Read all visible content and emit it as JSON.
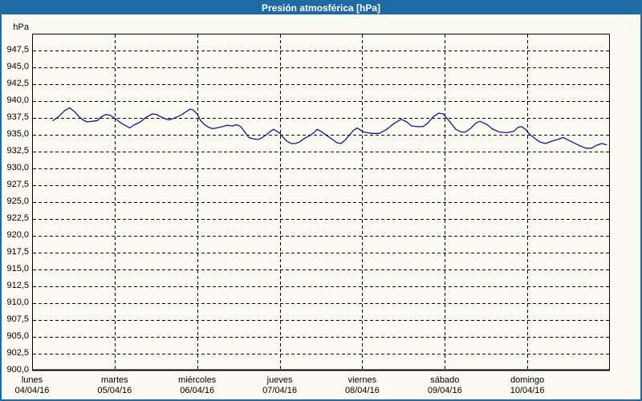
{
  "window": {
    "title": "Presión atmosférica [hPa]"
  },
  "colors": {
    "titlebar_bg": "#1e6ba4",
    "window_border": "#1e6ba4",
    "page_bg": "#fbfbf2",
    "line": "#1212b0",
    "grid": "#000000",
    "axis": "#000000",
    "title_text": "#ffffff",
    "label_text": "#000000"
  },
  "chart_data": {
    "type": "line",
    "title": "Presión atmosférica [hPa]",
    "unit_label": "hPa",
    "ylim": [
      900,
      950
    ],
    "ytick_step": 2.5,
    "xlim_hours": [
      0,
      168
    ],
    "grid": "dashed",
    "legend": "none",
    "yticks": [
      {
        "value": 947.5,
        "label": "947,5"
      },
      {
        "value": 945.0,
        "label": "945,0"
      },
      {
        "value": 942.5,
        "label": "942,5"
      },
      {
        "value": 940.0,
        "label": "940,0"
      },
      {
        "value": 937.5,
        "label": "937,5"
      },
      {
        "value": 935.0,
        "label": "935,0"
      },
      {
        "value": 932.5,
        "label": "932,5"
      },
      {
        "value": 930.0,
        "label": "930,0"
      },
      {
        "value": 927.5,
        "label": "927,5"
      },
      {
        "value": 925.0,
        "label": "925,0"
      },
      {
        "value": 922.5,
        "label": "922,5"
      },
      {
        "value": 920.0,
        "label": "920,0"
      },
      {
        "value": 917.5,
        "label": "917,5"
      },
      {
        "value": 915.0,
        "label": "915,0"
      },
      {
        "value": 912.5,
        "label": "912,5"
      },
      {
        "value": 910.0,
        "label": "910,0"
      },
      {
        "value": 907.5,
        "label": "907,5"
      },
      {
        "value": 905.0,
        "label": "905,0"
      },
      {
        "value": 902.5,
        "label": "902,5"
      },
      {
        "value": 900.0,
        "label": "900,0"
      }
    ],
    "days": [
      {
        "weekday": "lunes",
        "date": "04/04/16"
      },
      {
        "weekday": "martes",
        "date": "05/04/16"
      },
      {
        "weekday": "miércoles",
        "date": "06/04/16"
      },
      {
        "weekday": "jueves",
        "date": "07/04/16"
      },
      {
        "weekday": "viernes",
        "date": "08/04/16"
      },
      {
        "weekday": "sábado",
        "date": "09/04/16"
      },
      {
        "weekday": "domingo",
        "date": "10/04/16"
      }
    ],
    "series": [
      {
        "name": "Presión atmosférica",
        "color": "#1212b0",
        "x_unit": "hours_from_lunes_00h",
        "points": [
          [
            6.1,
            937.1
          ],
          [
            7.5,
            937.6
          ],
          [
            9.5,
            938.6
          ],
          [
            10.9,
            939.0
          ],
          [
            12.4,
            938.4
          ],
          [
            13.6,
            937.7
          ],
          [
            14.8,
            937.2
          ],
          [
            15.9,
            936.9
          ],
          [
            17.6,
            937.0
          ],
          [
            19.0,
            937.1
          ],
          [
            20.2,
            937.7
          ],
          [
            21.4,
            938.0
          ],
          [
            22.6,
            937.9
          ],
          [
            23.9,
            937.5
          ],
          [
            25.7,
            936.8
          ],
          [
            27.0,
            936.4
          ],
          [
            28.4,
            936.0
          ],
          [
            29.8,
            936.5
          ],
          [
            31.5,
            936.9
          ],
          [
            33.1,
            937.6
          ],
          [
            35.0,
            938.1
          ],
          [
            36.2,
            938.0
          ],
          [
            37.3,
            937.7
          ],
          [
            38.5,
            937.4
          ],
          [
            39.7,
            937.2
          ],
          [
            41.1,
            937.4
          ],
          [
            42.4,
            937.7
          ],
          [
            43.6,
            938.0
          ],
          [
            44.7,
            938.4
          ],
          [
            45.9,
            938.8
          ],
          [
            46.7,
            938.7
          ],
          [
            47.4,
            938.4
          ],
          [
            48.0,
            938.1
          ],
          [
            49.0,
            937.1
          ],
          [
            50.2,
            936.5
          ],
          [
            51.3,
            936.1
          ],
          [
            52.5,
            935.9
          ],
          [
            53.6,
            936.0
          ],
          [
            55.3,
            936.2
          ],
          [
            56.7,
            936.4
          ],
          [
            58.3,
            936.3
          ],
          [
            59.5,
            936.5
          ],
          [
            60.7,
            936.2
          ],
          [
            61.8,
            935.4
          ],
          [
            63.0,
            934.6
          ],
          [
            64.2,
            934.4
          ],
          [
            65.8,
            934.3
          ],
          [
            67.0,
            934.6
          ],
          [
            68.1,
            935.0
          ],
          [
            69.3,
            935.5
          ],
          [
            70.2,
            935.8
          ],
          [
            71.2,
            935.5
          ],
          [
            71.9,
            935.3
          ],
          [
            73.0,
            934.6
          ],
          [
            74.2,
            934.0
          ],
          [
            75.4,
            933.7
          ],
          [
            76.6,
            933.7
          ],
          [
            77.7,
            933.9
          ],
          [
            79.3,
            934.5
          ],
          [
            80.9,
            934.9
          ],
          [
            82.1,
            935.4
          ],
          [
            82.8,
            935.8
          ],
          [
            84.0,
            935.5
          ],
          [
            85.6,
            934.9
          ],
          [
            87.0,
            934.4
          ],
          [
            88.7,
            933.8
          ],
          [
            89.8,
            933.7
          ],
          [
            91.0,
            934.2
          ],
          [
            92.2,
            934.9
          ],
          [
            93.3,
            935.6
          ],
          [
            94.5,
            936.0
          ],
          [
            96.4,
            935.4
          ],
          [
            98.7,
            935.2
          ],
          [
            101.0,
            935.2
          ],
          [
            103.1,
            935.8
          ],
          [
            105.0,
            936.6
          ],
          [
            106.6,
            937.1
          ],
          [
            107.3,
            937.3
          ],
          [
            108.9,
            936.9
          ],
          [
            110.4,
            936.3
          ],
          [
            112.0,
            936.2
          ],
          [
            113.6,
            936.2
          ],
          [
            115.0,
            936.7
          ],
          [
            116.7,
            937.7
          ],
          [
            118.3,
            938.2
          ],
          [
            119.5,
            938.1
          ],
          [
            120.2,
            937.7
          ],
          [
            121.8,
            936.7
          ],
          [
            123.2,
            935.8
          ],
          [
            124.8,
            935.4
          ],
          [
            126.0,
            935.4
          ],
          [
            127.6,
            936.0
          ],
          [
            129.0,
            936.7
          ],
          [
            130.2,
            937.0
          ],
          [
            132.3,
            936.5
          ],
          [
            133.7,
            935.9
          ],
          [
            135.8,
            935.4
          ],
          [
            138.1,
            935.3
          ],
          [
            140.0,
            935.5
          ],
          [
            141.3,
            936.1
          ],
          [
            142.3,
            936.2
          ],
          [
            143.5,
            935.8
          ],
          [
            144.6,
            935.1
          ],
          [
            146.3,
            934.4
          ],
          [
            147.7,
            933.9
          ],
          [
            149.3,
            933.7
          ],
          [
            150.9,
            934.0
          ],
          [
            152.8,
            934.3
          ],
          [
            154.5,
            934.6
          ],
          [
            155.9,
            934.2
          ],
          [
            157.5,
            933.8
          ],
          [
            159.1,
            933.4
          ],
          [
            161.0,
            933.0
          ],
          [
            162.6,
            933.0
          ],
          [
            164.0,
            933.4
          ],
          [
            165.7,
            933.7
          ],
          [
            167.0,
            933.5
          ]
        ]
      }
    ]
  }
}
